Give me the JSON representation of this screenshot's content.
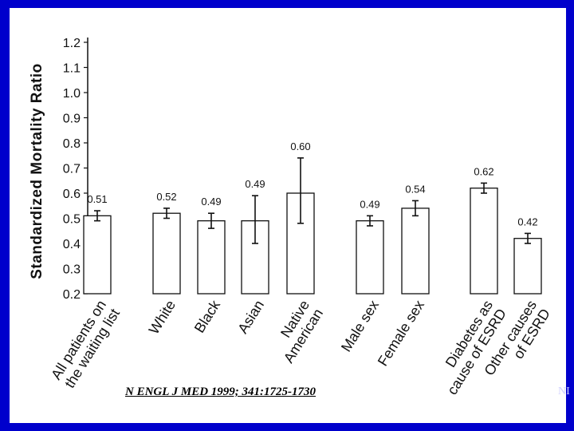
{
  "chart_data": {
    "type": "bar",
    "ylabel": "Standardized Mortality Ratio",
    "xlabel": "",
    "ylim": [
      0.2,
      1.2
    ],
    "yticks": [
      "0.2",
      "0.3",
      "0.4",
      "0.5",
      "0.6",
      "0.7",
      "0.8",
      "0.9",
      "1.0",
      "1.1",
      "1.2"
    ],
    "grid": false,
    "categories": [
      [
        "All patients on",
        "the waiting list"
      ],
      [
        "White"
      ],
      [
        "Black"
      ],
      [
        "Asian"
      ],
      [
        "Native",
        "American"
      ],
      [
        "Male sex"
      ],
      [
        "Female sex"
      ],
      [
        "Diabetes as",
        "cause of ESRD"
      ],
      [
        "Other causes",
        "of ESRD"
      ]
    ],
    "values": [
      0.51,
      0.52,
      0.49,
      0.49,
      0.6,
      0.49,
      0.54,
      0.62,
      0.42
    ],
    "value_labels": [
      "0.51",
      "0.52",
      "0.49",
      "0.49",
      "0.60",
      "0.49",
      "0.54",
      "0.62",
      "0.42"
    ],
    "error_low": [
      0.49,
      0.5,
      0.46,
      0.4,
      0.48,
      0.47,
      0.51,
      0.6,
      0.4
    ],
    "error_high": [
      0.53,
      0.54,
      0.52,
      0.59,
      0.74,
      0.51,
      0.57,
      0.64,
      0.44
    ]
  },
  "citation": "N ENGL J MED 1999; 341:1725-1730",
  "edge_fragment": "NI",
  "colors": {
    "background": "#0000cc",
    "panel": "#ffffff",
    "bar_fill": "#ffffff",
    "bar_stroke": "#111111"
  }
}
